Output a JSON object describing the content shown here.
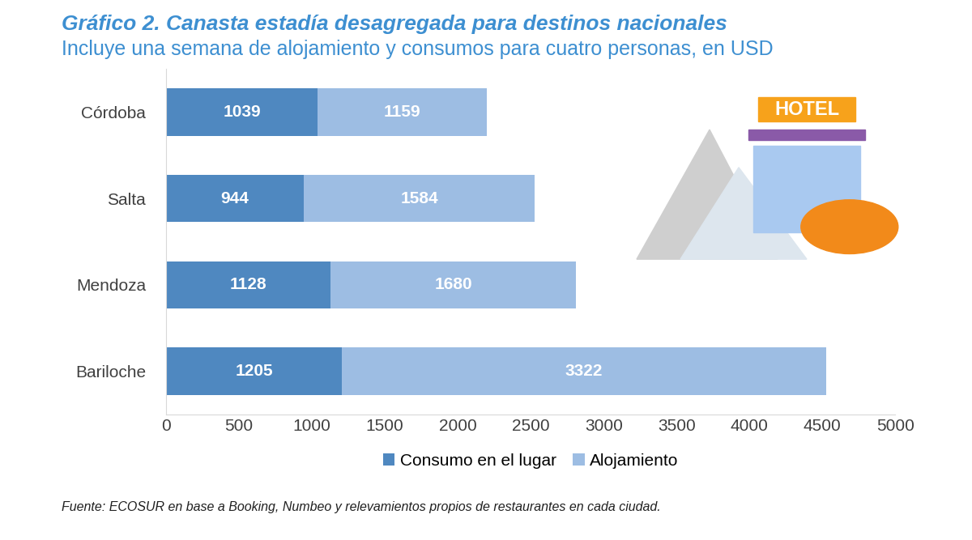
{
  "chart_data": {
    "type": "bar",
    "orientation": "horizontal",
    "stacked": true,
    "title": "Gráfico 2. Canasta estadía desagregada para destinos nacionales",
    "subtitle": "Incluye una semana de alojamiento y consumos para cuatro personas, en USD",
    "source": "Fuente: ECOSUR en base a Booking, Numbeo y relevamientos propios de restaurantes en cada ciudad.",
    "icon_label": "HOTEL",
    "categories": [
      "Córdoba",
      "Salta",
      "Mendoza",
      "Bariloche"
    ],
    "series": [
      {
        "name": "Consumo en el lugar",
        "color": "#4f88c0",
        "values": [
          1039,
          944,
          1128,
          1205
        ]
      },
      {
        "name": "Alojamiento",
        "color": "#9dbde3",
        "values": [
          1159,
          1584,
          1680,
          3322
        ]
      }
    ],
    "xlim": [
      0,
      5000
    ],
    "xticks": [
      0,
      500,
      1000,
      1500,
      2000,
      2500,
      3000,
      3500,
      4000,
      4500,
      5000
    ],
    "grid": false,
    "legend": "lower center",
    "data_labels": true
  }
}
